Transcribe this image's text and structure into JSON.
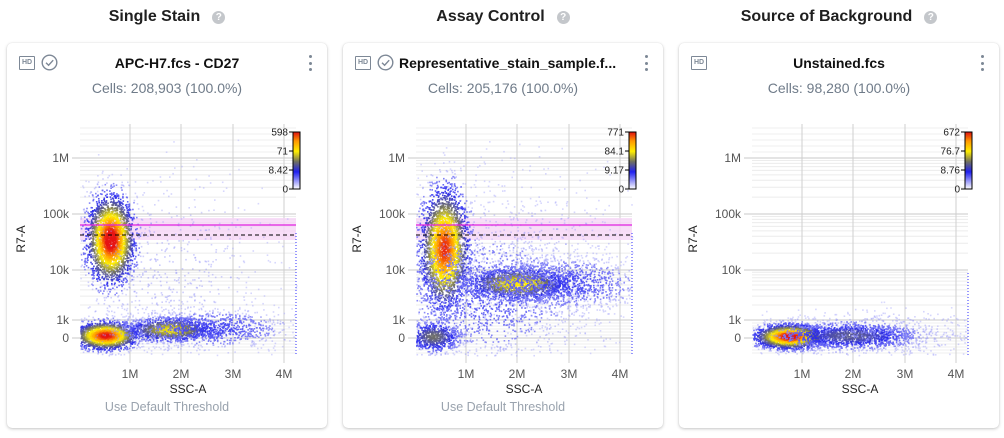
{
  "sections": [
    {
      "title": "Single Stain",
      "help_icon": "question-circle-icon",
      "card": {
        "hd_icon": "HD",
        "check_icon": true,
        "file_title": "APC-H7.fcs - CD27",
        "cells": "Cells: 208,903 (100.0%)",
        "threshold_link": "Use Default Threshold",
        "plot": {
          "type": "scatter-density",
          "x_label": "SSC-A",
          "y_label": "R7-A",
          "x_ticks": [
            "1M",
            "2M",
            "3M",
            "4M"
          ],
          "y_ticks": [
            "1M",
            "100k",
            "10k",
            "1k",
            "0"
          ],
          "colorbar_ticks": [
            "598",
            "71",
            "8.42",
            "0"
          ],
          "has_threshold_lines": true
        }
      }
    },
    {
      "title": "Assay Control",
      "help_icon": "question-circle-icon",
      "card": {
        "hd_icon": "HD",
        "check_icon": true,
        "file_title": "Representative_stain_sample.f...",
        "cells": "Cells: 205,176 (100.0%)",
        "threshold_link": "Use Default Threshold",
        "plot": {
          "type": "scatter-density",
          "x_label": "SSC-A",
          "y_label": "R7-A",
          "x_ticks": [
            "1M",
            "2M",
            "3M",
            "4M"
          ],
          "y_ticks": [
            "1M",
            "100k",
            "10k",
            "1k",
            "0"
          ],
          "colorbar_ticks": [
            "771",
            "84.1",
            "9.17",
            "0"
          ],
          "has_threshold_lines": true
        }
      }
    },
    {
      "title": "Source of Background",
      "help_icon": "question-circle-icon",
      "card": {
        "hd_icon": "HD",
        "check_icon": false,
        "file_title": "Unstained.fcs",
        "cells": "Cells: 98,280 (100.0%)",
        "plot": {
          "type": "scatter-density",
          "x_label": "SSC-A",
          "y_label": "R7-A",
          "x_ticks": [
            "1M",
            "2M",
            "3M",
            "4M"
          ],
          "y_ticks": [
            "1M",
            "100k",
            "10k",
            "1k",
            "0"
          ],
          "colorbar_ticks": [
            "672",
            "76.7",
            "8.76",
            "0"
          ],
          "has_threshold_lines": false
        }
      }
    }
  ],
  "colors": {
    "threshold_magenta": "#e020e0",
    "threshold_band": "#f6d6f6",
    "dashed_line": "#000000",
    "muted_text": "#6f7b89",
    "link_text": "#9aa3ae"
  }
}
